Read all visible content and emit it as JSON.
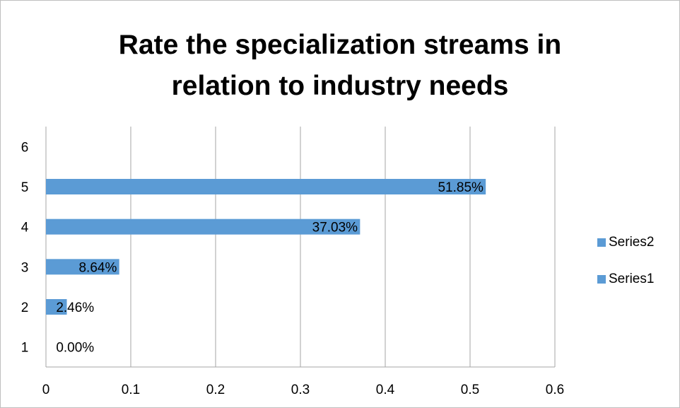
{
  "chart_data": {
    "type": "bar",
    "orientation": "horizontal",
    "title_lines": [
      "Rate the specialization streams in",
      "relation to industry needs"
    ],
    "categories": [
      "1",
      "2",
      "3",
      "4",
      "5",
      "6"
    ],
    "series": [
      {
        "name": "Series1",
        "color": "#5b9bd5",
        "values": [
          0,
          0.0246,
          0.0864,
          0.3703,
          0.5185,
          null
        ],
        "labels": [
          "0.00%",
          "2.46%",
          "8.64%",
          "37.03%",
          "51.85%",
          ""
        ]
      },
      {
        "name": "Series2",
        "color": "#5b9bd5",
        "values": [
          null,
          null,
          null,
          null,
          null,
          null
        ],
        "labels": [
          "",
          "",
          "",
          "",
          "",
          ""
        ]
      }
    ],
    "xlim": [
      0,
      0.6
    ],
    "x_ticks": [
      "0",
      "0.1",
      "0.2",
      "0.3",
      "0.4",
      "0.5",
      "0.6"
    ],
    "gridlines": "vertical",
    "legend_position": "right",
    "legend": [
      "Series2",
      "Series1"
    ]
  }
}
